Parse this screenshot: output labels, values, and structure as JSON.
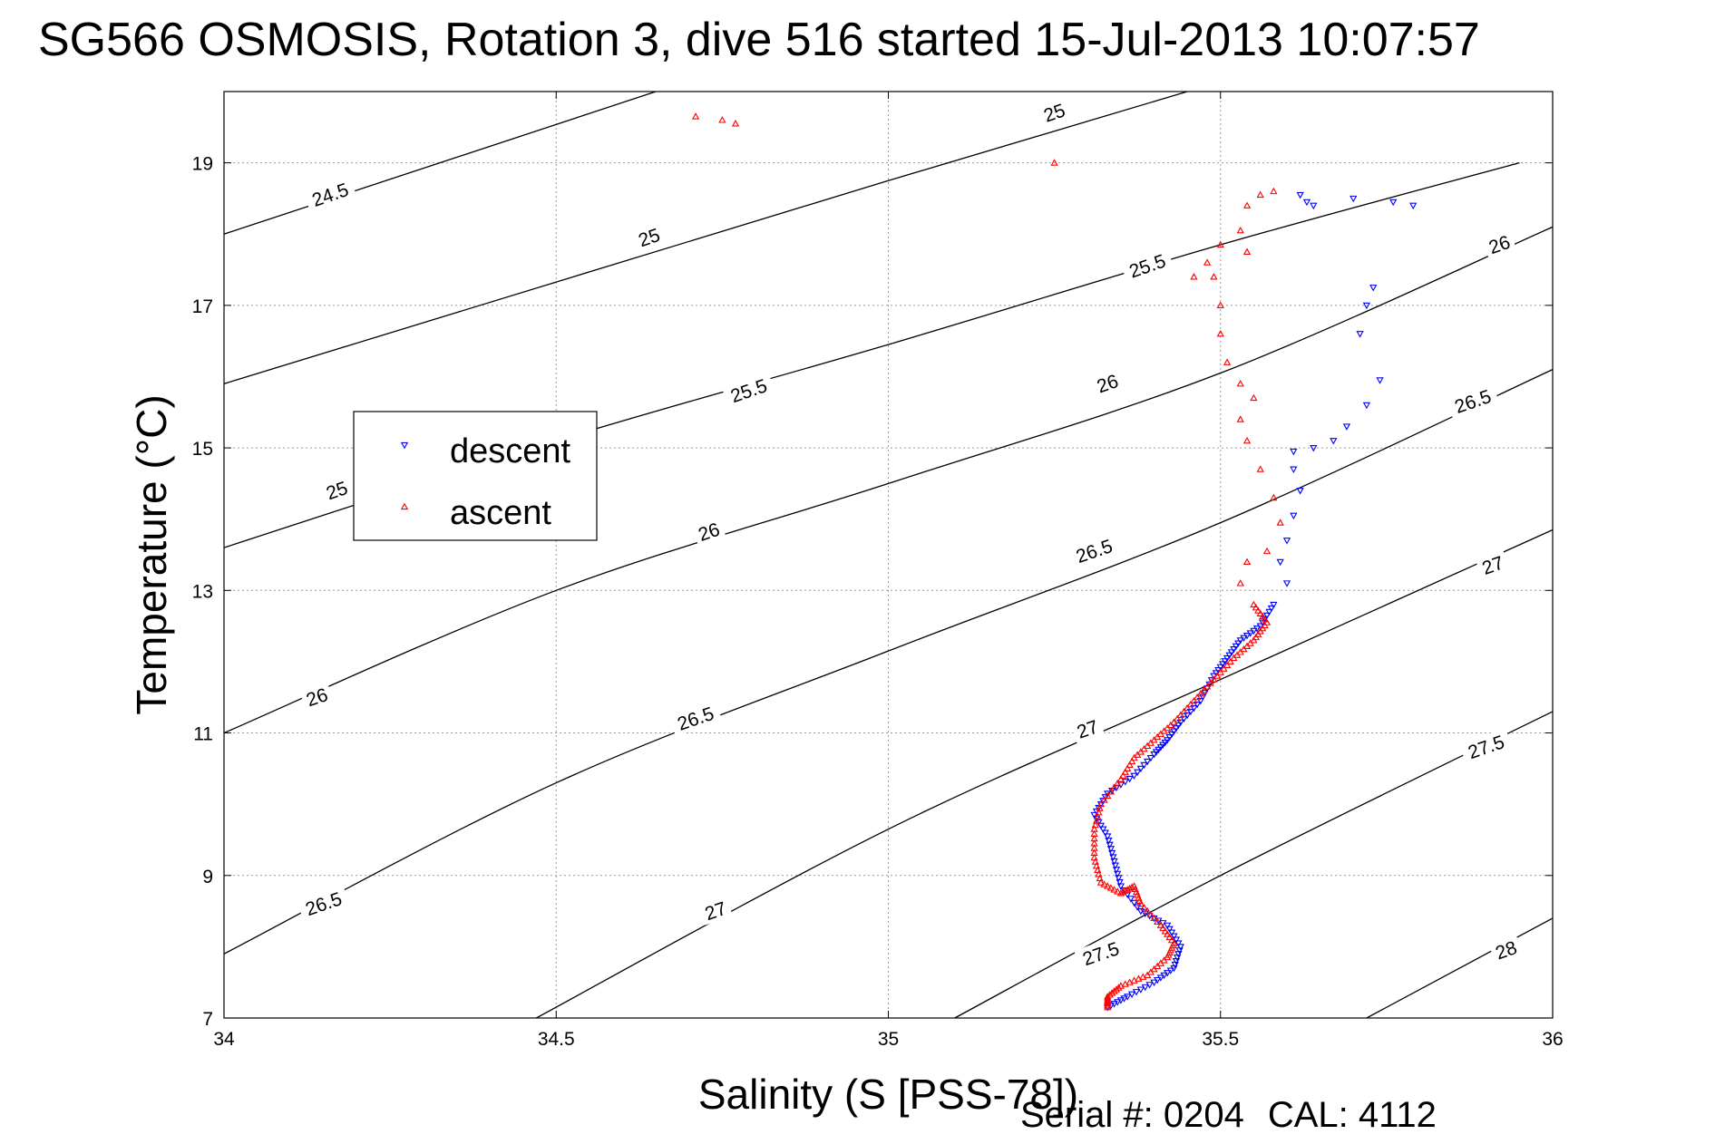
{
  "title": "SG566 OSMOSIS, Rotation 3, dive 516 started 15-Jul-2013 10:07:57",
  "footer": {
    "serial": "Serial #: 0204",
    "cal": "CAL: 4112"
  },
  "chart_data": {
    "type": "scatter",
    "xlabel": "Salinity (S [PSS-78])",
    "ylabel": "Temperature (°C)",
    "xlim": [
      34,
      36
    ],
    "ylim": [
      7,
      20
    ],
    "xticks": [
      "34",
      "34.5",
      "35",
      "35.5",
      "36"
    ],
    "yticks": [
      "7",
      "9",
      "11",
      "13",
      "15",
      "17",
      "19"
    ],
    "grid": true,
    "legend_position": "center-left",
    "density_contours": [
      {
        "label": "24.5",
        "points": [
          [
            34,
            18.0
          ],
          [
            34.65,
            20.0
          ]
        ]
      },
      {
        "label": "25",
        "points": [
          [
            34,
            15.9
          ],
          [
            35.0,
            18.75
          ],
          [
            35.45,
            20.0
          ]
        ]
      },
      {
        "label": "25.5",
        "points": [
          [
            34,
            13.6
          ],
          [
            34.5,
            15.1
          ],
          [
            35.0,
            16.45
          ],
          [
            35.5,
            17.85
          ],
          [
            35.95,
            19.0
          ]
        ]
      },
      {
        "label": "26",
        "points": [
          [
            34,
            11.0
          ],
          [
            34.5,
            13.0
          ],
          [
            35.0,
            14.5
          ],
          [
            35.5,
            16.05
          ],
          [
            36.0,
            18.1
          ]
        ]
      },
      {
        "label": "26.5",
        "points": [
          [
            34,
            7.9
          ],
          [
            34.5,
            10.3
          ],
          [
            35.0,
            12.15
          ],
          [
            35.5,
            13.95
          ],
          [
            36.0,
            16.1
          ]
        ]
      },
      {
        "label": "27",
        "points": [
          [
            34.47,
            7.0
          ],
          [
            35.0,
            9.65
          ],
          [
            35.5,
            11.75
          ],
          [
            36.0,
            13.85
          ]
        ]
      },
      {
        "label": "27.5",
        "points": [
          [
            35.1,
            7.0
          ],
          [
            35.5,
            9.0
          ],
          [
            36.0,
            11.3
          ]
        ]
      },
      {
        "label": "28",
        "points": [
          [
            35.72,
            7.0
          ],
          [
            36.0,
            8.4
          ]
        ]
      }
    ],
    "contour_labels": [
      {
        "text": "24.5",
        "x": 34.16,
        "y": 18.55
      },
      {
        "text": "25",
        "x": 35.25,
        "y": 19.7
      },
      {
        "text": "25",
        "x": 34.64,
        "y": 17.95
      },
      {
        "text": "25",
        "x": 34.17,
        "y": 14.4
      },
      {
        "text": "25.5",
        "x": 35.39,
        "y": 17.55
      },
      {
        "text": "25.5",
        "x": 34.79,
        "y": 15.8
      },
      {
        "text": "26",
        "x": 35.92,
        "y": 17.85
      },
      {
        "text": "26",
        "x": 35.33,
        "y": 15.9
      },
      {
        "text": "26",
        "x": 34.73,
        "y": 13.82
      },
      {
        "text": "26",
        "x": 34.14,
        "y": 11.5
      },
      {
        "text": "26.5",
        "x": 35.88,
        "y": 15.65
      },
      {
        "text": "26.5",
        "x": 35.31,
        "y": 13.55
      },
      {
        "text": "26.5",
        "x": 34.71,
        "y": 11.2
      },
      {
        "text": "26.5",
        "x": 34.15,
        "y": 8.6
      },
      {
        "text": "27",
        "x": 35.91,
        "y": 13.35
      },
      {
        "text": "27",
        "x": 35.3,
        "y": 11.05
      },
      {
        "text": "27",
        "x": 34.74,
        "y": 8.5
      },
      {
        "text": "27.5",
        "x": 35.9,
        "y": 10.8
      },
      {
        "text": "27.5",
        "x": 35.32,
        "y": 7.9
      },
      {
        "text": "28",
        "x": 35.93,
        "y": 7.95
      }
    ],
    "series": [
      {
        "name": "descent",
        "marker": "triangle-down",
        "color": "#0000ff",
        "points": [
          [
            35.62,
            18.55
          ],
          [
            35.63,
            18.45
          ],
          [
            35.64,
            18.4
          ],
          [
            35.7,
            18.5
          ],
          [
            35.76,
            18.45
          ],
          [
            35.79,
            18.4
          ],
          [
            35.73,
            17.25
          ],
          [
            35.72,
            17.0
          ],
          [
            35.71,
            16.6
          ],
          [
            35.74,
            15.95
          ],
          [
            35.72,
            15.6
          ],
          [
            35.69,
            15.3
          ],
          [
            35.67,
            15.1
          ],
          [
            35.64,
            15.0
          ],
          [
            35.61,
            14.95
          ],
          [
            35.61,
            14.7
          ],
          [
            35.62,
            14.4
          ],
          [
            35.61,
            14.05
          ],
          [
            35.6,
            13.7
          ],
          [
            35.59,
            13.4
          ],
          [
            35.6,
            13.1
          ],
          [
            35.58,
            12.8
          ],
          [
            35.56,
            12.5
          ],
          [
            35.53,
            12.3
          ],
          [
            35.51,
            12.05
          ],
          [
            35.49,
            11.8
          ],
          [
            35.47,
            11.45
          ],
          [
            35.44,
            11.15
          ],
          [
            35.42,
            10.9
          ],
          [
            35.4,
            10.7
          ],
          [
            35.37,
            10.4
          ],
          [
            35.33,
            10.15
          ],
          [
            35.31,
            9.85
          ],
          [
            35.33,
            9.55
          ],
          [
            35.34,
            9.2
          ],
          [
            35.35,
            8.85
          ],
          [
            35.38,
            8.5
          ],
          [
            35.42,
            8.3
          ],
          [
            35.44,
            8.0
          ],
          [
            35.43,
            7.7
          ],
          [
            35.4,
            7.5
          ],
          [
            35.36,
            7.3
          ],
          [
            35.33,
            7.15
          ]
        ]
      },
      {
        "name": "ascent",
        "marker": "triangle-up",
        "color": "#ff0000",
        "points": [
          [
            34.71,
            19.65
          ],
          [
            34.75,
            19.6
          ],
          [
            34.77,
            19.55
          ],
          [
            35.25,
            19.0
          ],
          [
            35.58,
            18.6
          ],
          [
            35.56,
            18.55
          ],
          [
            35.54,
            18.4
          ],
          [
            35.53,
            18.05
          ],
          [
            35.54,
            17.75
          ],
          [
            35.5,
            17.85
          ],
          [
            35.48,
            17.6
          ],
          [
            35.46,
            17.4
          ],
          [
            35.49,
            17.4
          ],
          [
            35.5,
            17.0
          ],
          [
            35.5,
            16.6
          ],
          [
            35.51,
            16.2
          ],
          [
            35.53,
            15.9
          ],
          [
            35.55,
            15.7
          ],
          [
            35.53,
            15.4
          ],
          [
            35.54,
            15.1
          ],
          [
            35.56,
            14.7
          ],
          [
            35.58,
            14.3
          ],
          [
            35.59,
            13.95
          ],
          [
            35.57,
            13.55
          ],
          [
            35.54,
            13.4
          ],
          [
            35.53,
            13.1
          ],
          [
            35.55,
            12.8
          ],
          [
            35.57,
            12.55
          ],
          [
            35.55,
            12.3
          ],
          [
            35.52,
            12.05
          ],
          [
            35.49,
            11.75
          ],
          [
            35.46,
            11.45
          ],
          [
            35.43,
            11.15
          ],
          [
            35.4,
            10.9
          ],
          [
            35.37,
            10.65
          ],
          [
            35.35,
            10.35
          ],
          [
            35.32,
            10.0
          ],
          [
            35.31,
            9.65
          ],
          [
            35.31,
            9.25
          ],
          [
            35.32,
            8.9
          ],
          [
            35.35,
            8.75
          ],
          [
            35.37,
            8.85
          ],
          [
            35.38,
            8.6
          ],
          [
            35.41,
            8.3
          ],
          [
            35.43,
            8.05
          ],
          [
            35.42,
            7.85
          ],
          [
            35.39,
            7.6
          ],
          [
            35.35,
            7.45
          ],
          [
            35.33,
            7.3
          ],
          [
            35.33,
            7.15
          ]
        ]
      }
    ]
  }
}
